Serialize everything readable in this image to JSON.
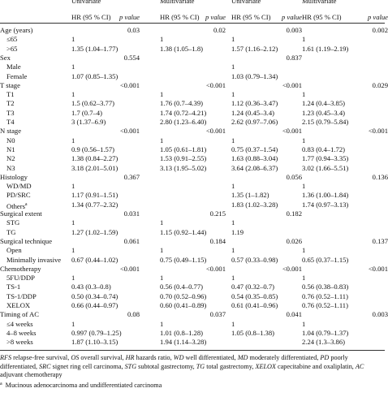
{
  "header": {
    "groups": [
      "Univariate",
      "Multivariate",
      "Univariate",
      "Multivariate"
    ],
    "hr": "HR (95 % CI)",
    "p": "p value"
  },
  "sections": [
    {
      "label": "Age (years)",
      "p": [
        "0.03",
        "0.02",
        "0.003",
        "0.002"
      ],
      "items": [
        {
          "label": "≤65",
          "hr": [
            "1",
            "1",
            "1",
            "1"
          ]
        },
        {
          "label": ">65",
          "hr": [
            "1.35 (1.04–1.77)",
            "1.38 (1.05–1.8)",
            "1.57 (1.16–2.12)",
            "1.61 (1.19–2.19)"
          ]
        }
      ]
    },
    {
      "label": "Sex",
      "p": [
        "0.554",
        null,
        "0.837",
        null
      ],
      "items": [
        {
          "label": "Male",
          "hr": [
            "1",
            null,
            "1",
            null
          ]
        },
        {
          "label": "Female",
          "hr": [
            "1.07 (0.85–1.35)",
            null,
            "1.03 (0.79–1.34)",
            null
          ]
        }
      ]
    },
    {
      "label": "T stage",
      "p": [
        "<0.001",
        "<0.001",
        "<0.001",
        "0.029"
      ],
      "items": [
        {
          "label": "T1",
          "hr": [
            "1",
            "1",
            "1",
            "1"
          ]
        },
        {
          "label": "T2",
          "hr": [
            "1.5 (0.62–3.77)",
            "1.76 (0.7–4.39)",
            "1.12 (0.36–3.47)",
            "1.24 (0.4–3.85)"
          ]
        },
        {
          "label": "T3",
          "hr": [
            "1.7 (0.7–4)",
            "1.74 (0.72–4.21)",
            "1.24 (0.45–3.4)",
            "1.23 (0.45–3.4)"
          ]
        },
        {
          "label": "T4",
          "hr": [
            "3 (1.37–6.9)",
            "2.80 (1.23–6.40)",
            "2.62 (0.97–7.06)",
            "2.15 (0.79–5.84)"
          ]
        }
      ]
    },
    {
      "label": "N stage",
      "p": [
        "<0.001",
        "<0.001",
        "<0.001",
        "<0.001"
      ],
      "items": [
        {
          "label": "N0",
          "hr": [
            "1",
            "1",
            "1",
            "1"
          ]
        },
        {
          "label": "N1",
          "hr": [
            "0.9 (0.56–1.57)",
            "1.05 (0.61–1.81)",
            "0.75 (0.37–1.54)",
            "0.83 (0.4–1.72)"
          ]
        },
        {
          "label": "N2",
          "hr": [
            "1.38 (0.84–2.27)",
            "1.53 (0.91–2.55)",
            "1.63 (0.88–3.04)",
            "1.77 (0.94–3.35)"
          ]
        },
        {
          "label": "N3",
          "hr": [
            "3.18 (2.01–5.01)",
            "3.13 (1.95–5.02)",
            "3.64 (2.08–6.37)",
            "3.02 (1.66–5.51)"
          ]
        }
      ]
    },
    {
      "label": "Histology",
      "p": [
        "0.367",
        null,
        "0.056",
        "0.136"
      ],
      "items": [
        {
          "label": "WD/MD",
          "hr": [
            "1",
            null,
            "1",
            "1"
          ]
        },
        {
          "label": "PD/SRC",
          "hr": [
            "1.17 (0.91–1.51)",
            null,
            "1.35 (1–1.82)",
            "1.36 (1.00–1.84)"
          ]
        },
        {
          "label": "Others",
          "sup": "a",
          "hr": [
            "1.34 (0.77–2.32)",
            null,
            "1.83 (1.02–3.28)",
            "1.74 (0.97–3.13)"
          ]
        }
      ]
    },
    {
      "label": "Surgical extent",
      "p": [
        "0.031",
        "0.215",
        "0.182",
        null
      ],
      "items": [
        {
          "label": "STG",
          "hr": [
            "1",
            "1",
            "1",
            null
          ]
        },
        {
          "label": "TG",
          "hr": [
            "1.27 (1.02–1.59)",
            "1.15 (0.92–1.44)",
            "1.19",
            null
          ]
        }
      ]
    },
    {
      "label": "Surgical technique",
      "p": [
        "0.061",
        "0.184",
        "0.026",
        "0.137"
      ],
      "items": [
        {
          "label": "Open",
          "hr": [
            "1",
            "1",
            "1",
            "1"
          ]
        },
        {
          "label": "Minimally invasive",
          "hr": [
            "0.67 (0.44–1.02)",
            "0.75 (0.49–1.15)",
            "0.57 (0.33–0.98)",
            "0.65 (0.37–1.15)"
          ]
        }
      ]
    },
    {
      "label": "Chemotherapy",
      "p": [
        "<0.001",
        "<0.001",
        "<0.001",
        "<0.001"
      ],
      "items": [
        {
          "label": "5FU/DDP",
          "hr": [
            "1",
            "1",
            "1",
            "1"
          ]
        },
        {
          "label": "TS-1",
          "hr": [
            "0.43 (0.3–0.8)",
            "0.56 (0.4–0.77)",
            "0.47 (0.32–0.7)",
            "0.56 (0.38–0.83)"
          ]
        },
        {
          "label": "TS-1/DDP",
          "hr": [
            "0.50 (0.34–0.74)",
            "0.70 (0.52–0.96)",
            "0.54 (0.35–0.85)",
            "0.76 (0.52–1.11)"
          ]
        },
        {
          "label": "XELOX",
          "hr": [
            "0.66 (0.44–0.97)",
            "0.60 (0.41–0.89)",
            "0.61 (0.41–0.96)",
            "0.76 (0.52–1.11)"
          ]
        }
      ]
    },
    {
      "label": "Timing of AC",
      "p": [
        "0.08",
        "0.037",
        "0.041",
        "0.003"
      ],
      "items": [
        {
          "label": "≤4 weeks",
          "hr": [
            "1",
            "1",
            "1",
            "1"
          ]
        },
        {
          "label": "4–8 weeks",
          "hr": [
            "0.997 (0.79–1.25)",
            "1.01 (0.8–1.28)",
            "1.05 (0.8–1.38)",
            "1.04 (0.79–1.37)"
          ]
        },
        {
          "label": ">8 weeks",
          "hr": [
            "1.87 (1.10–3.15)",
            "1.94 (1.14–3.28)",
            null,
            "2.24 (1.3–3.86)"
          ]
        }
      ]
    }
  ],
  "footnote": {
    "abbreviations": [
      {
        "abbr": "RFS",
        "def": " relapse-free survival, "
      },
      {
        "abbr": "OS",
        "def": " overall survival, "
      },
      {
        "abbr": "HR",
        "def": " hazards ratio, "
      },
      {
        "abbr": "WD",
        "def": " well differentiated, "
      },
      {
        "abbr": "MD",
        "def": " moderately differentiated, "
      },
      {
        "abbr": "PD",
        "def": " poorly differentiated, "
      },
      {
        "abbr": "SRC",
        "def": " signet ring cell carcinoma, "
      },
      {
        "abbr": "STG",
        "def": " subtotal gastrectomy, "
      },
      {
        "abbr": "TG",
        "def": " total gastrectomy, "
      },
      {
        "abbr": "XELOX",
        "def": " capecitabine and oxaliplatin, "
      },
      {
        "abbr": "AC",
        "def": " adjuvant chemotherapy"
      }
    ],
    "note_mark": "a",
    "note": "Mucinous adenocarcinoma and undifferentiated carcinoma"
  }
}
